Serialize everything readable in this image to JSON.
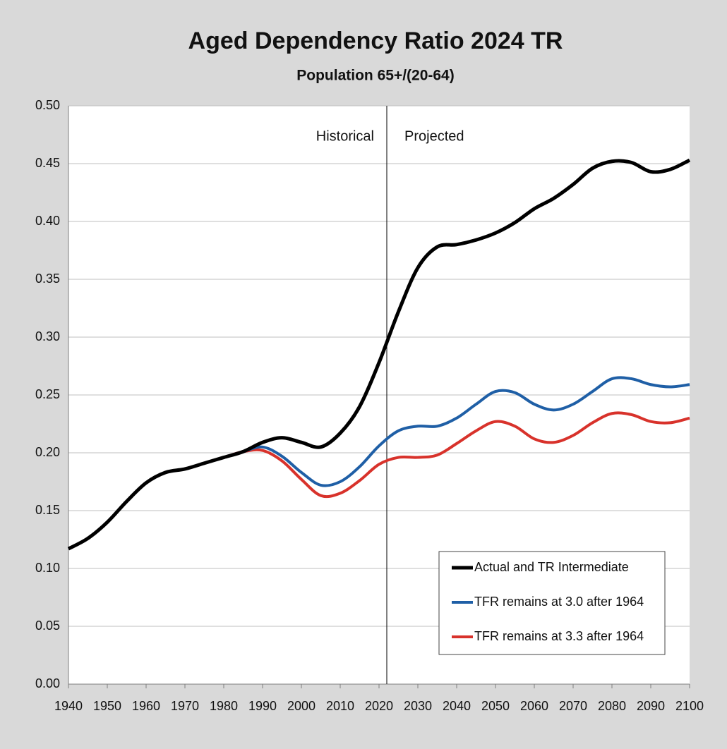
{
  "chart_data": {
    "type": "line",
    "title": "Aged Dependency Ratio 2024 TR",
    "subtitle": "Population 65+/(20-64)",
    "annotations": [
      "Historical",
      "Projected"
    ],
    "divider_x": 2022,
    "x": [
      1940,
      1945,
      1950,
      1955,
      1960,
      1965,
      1970,
      1975,
      1980,
      1985,
      1990,
      1995,
      2000,
      2005,
      2010,
      2015,
      2020,
      2025,
      2030,
      2035,
      2040,
      2045,
      2050,
      2055,
      2060,
      2065,
      2070,
      2075,
      2080,
      2085,
      2090,
      2095,
      2100
    ],
    "series": [
      {
        "name": "Actual and TR Intermediate",
        "color": "#000000",
        "values": [
          0.117,
          0.126,
          0.14,
          0.158,
          0.174,
          0.183,
          0.186,
          0.191,
          0.196,
          0.201,
          0.209,
          0.213,
          0.209,
          0.205,
          0.217,
          0.24,
          0.278,
          0.322,
          0.36,
          0.378,
          0.38,
          0.384,
          0.39,
          0.399,
          0.411,
          0.42,
          0.432,
          0.446,
          0.452,
          0.451,
          0.443,
          0.445,
          0.453
        ]
      },
      {
        "name": "TFR remains at 3.0 after 1964",
        "color": "#1f5fa6",
        "values": [
          0.117,
          0.126,
          0.14,
          0.158,
          0.174,
          0.183,
          0.186,
          0.191,
          0.196,
          0.201,
          0.205,
          0.197,
          0.183,
          0.172,
          0.175,
          0.188,
          0.206,
          0.219,
          0.223,
          0.223,
          0.23,
          0.242,
          0.253,
          0.252,
          0.242,
          0.237,
          0.242,
          0.253,
          0.264,
          0.264,
          0.259,
          0.257,
          0.259
        ]
      },
      {
        "name": "TFR remains at 3.3 after 1964",
        "color": "#d8322b",
        "values": [
          0.117,
          0.126,
          0.14,
          0.158,
          0.174,
          0.183,
          0.186,
          0.191,
          0.196,
          0.201,
          0.202,
          0.193,
          0.177,
          0.163,
          0.165,
          0.176,
          0.19,
          0.196,
          0.196,
          0.198,
          0.208,
          0.219,
          0.227,
          0.223,
          0.212,
          0.209,
          0.215,
          0.226,
          0.234,
          0.233,
          0.227,
          0.226,
          0.23
        ]
      }
    ],
    "xlim": [
      1940,
      2100
    ],
    "xticks": [
      1940,
      1950,
      1960,
      1970,
      1980,
      1990,
      2000,
      2010,
      2020,
      2030,
      2040,
      2050,
      2060,
      2070,
      2080,
      2090,
      2100
    ],
    "ylim": [
      0,
      0.5
    ],
    "yticks": [
      {
        "value": 0,
        "label": "0.00"
      },
      {
        "value": 0.05,
        "label": "0.05"
      },
      {
        "value": 0.1,
        "label": "0.10"
      },
      {
        "value": 0.15,
        "label": "0.15"
      },
      {
        "value": 0.2,
        "label": "0.20"
      },
      {
        "value": 0.25,
        "label": "0.25"
      },
      {
        "value": 0.3,
        "label": "0.30"
      },
      {
        "value": 0.35,
        "label": "0.35"
      },
      {
        "value": 0.4,
        "label": "0.40"
      },
      {
        "value": 0.45,
        "label": "0.45"
      },
      {
        "value": 0.5,
        "label": "0.50"
      }
    ],
    "grid": true,
    "legend": "lower right"
  }
}
